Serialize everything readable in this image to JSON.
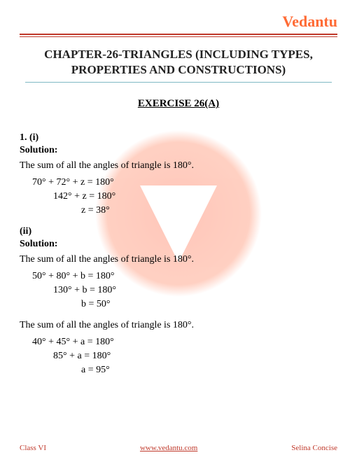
{
  "brand": "Vedantu",
  "chapter_title_line1": "CHAPTER-26-TRIANGLES (INCLUDING TYPES,",
  "chapter_title_line2": "PROPERTIES AND CONSTRUCTIONS)",
  "exercise_title": "EXERCISE 26(A)",
  "q1": {
    "label": "1. (i)",
    "solution_label": "Solution:",
    "statement": "The sum of all the angles of triangle is 180°.",
    "equations": {
      "line1": "70° + 72° + z = 180°",
      "line2": "142° + z = 180°",
      "line3": "z = 38°"
    }
  },
  "q2": {
    "label": "(ii)",
    "solution_label": "Solution:",
    "statement1": "The sum of all the angles of triangle is 180°.",
    "equations1": {
      "line1": "50° + 80° + b = 180°",
      "line2": "130° + b = 180°",
      "line3": "b = 50°"
    },
    "statement2": "The sum of all the angles of triangle is 180°.",
    "equations2": {
      "line1": "40° + 45° + a = 180°",
      "line2": "85° + a = 180°",
      "line3": "a = 95°"
    }
  },
  "footer": {
    "left": "Class VI",
    "center": "www.vedantu.com",
    "right": "Selina Concise"
  },
  "colors": {
    "brand_orange": "#ff6b35",
    "rule_red": "#c0392b",
    "title_underline": "#7fb8c4",
    "watermark": "#ff5e3a"
  }
}
